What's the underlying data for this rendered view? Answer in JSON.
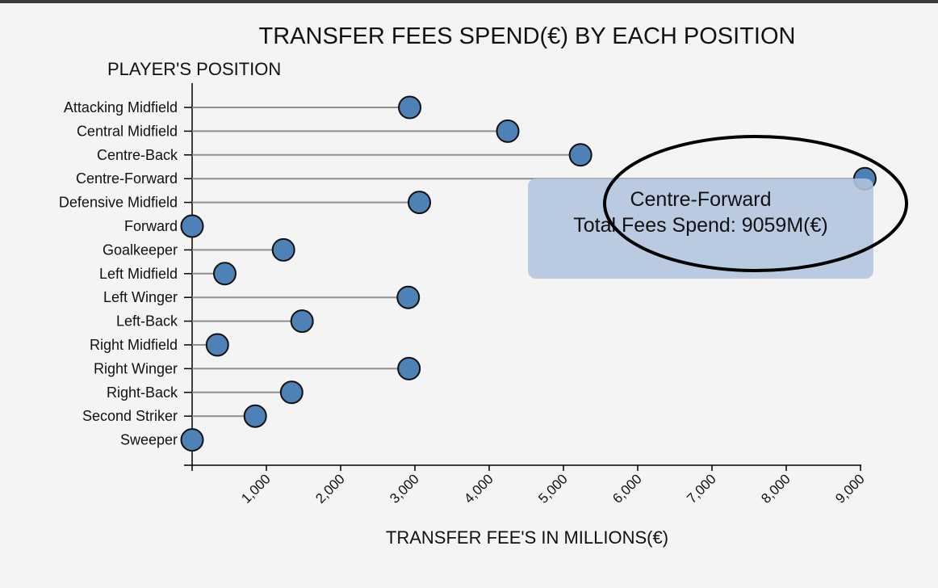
{
  "chart_data": {
    "type": "lollipop",
    "orientation": "horizontal",
    "title": "TRANSFER FEES SPEND(€) BY EACH POSITION",
    "ylabel": "PLAYER'S POSITION",
    "xlabel": "TRANSFER FEE'S IN MILLIONS(€)",
    "xlim": [
      0,
      9000
    ],
    "xticks": [
      1000,
      2000,
      3000,
      4000,
      5000,
      6000,
      7000,
      8000,
      9000
    ],
    "xtick_labels": [
      "1,000",
      "2,000",
      "3,000",
      "4,000",
      "5,000",
      "6,000",
      "7,000",
      "8,000",
      "9,000"
    ],
    "categories": [
      "Attacking Midfield",
      "Central Midfield",
      "Centre-Back",
      "Centre-Forward",
      "Defensive Midfield",
      "Forward",
      "Goalkeeper",
      "Left Midfield",
      "Left Winger",
      "Left-Back",
      "Right Midfield",
      "Right Winger",
      "Right-Back",
      "Second Striker",
      "Sweeper"
    ],
    "values": [
      2930,
      4250,
      5230,
      9059,
      3060,
      0,
      1230,
      440,
      2910,
      1480,
      340,
      2920,
      1340,
      850,
      0
    ],
    "color": "#4e81b5"
  },
  "tooltip": {
    "title": "Centre-Forward",
    "text": "Total Fees Spend: 9059M(€)"
  }
}
